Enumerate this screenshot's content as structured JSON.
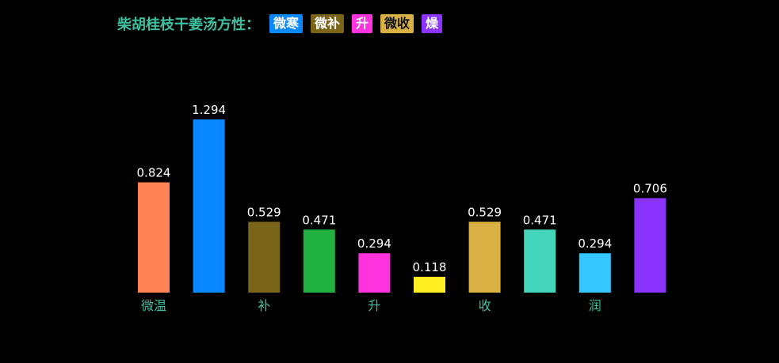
{
  "header": {
    "title": "柴胡桂枝干姜汤方性：",
    "tags": [
      {
        "label": "微寒",
        "color": "#0a88ff",
        "text_color": "#ffffff"
      },
      {
        "label": "微补",
        "color": "#7a6418",
        "text_color": "#ffffff"
      },
      {
        "label": "升",
        "color": "#ff33dd",
        "text_color": "#ffffff"
      },
      {
        "label": "微收",
        "color": "#d8b044",
        "text_color": "#111111"
      },
      {
        "label": "燥",
        "color": "#8a33ff",
        "text_color": "#ffffff"
      }
    ]
  },
  "chart_data": {
    "type": "bar",
    "categories": [
      "微温",
      "",
      "补",
      "",
      "升",
      "",
      "收",
      "",
      "润",
      ""
    ],
    "values": [
      0.824,
      1.294,
      0.529,
      0.471,
      0.294,
      0.118,
      0.529,
      0.471,
      0.294,
      0.706
    ],
    "value_labels": [
      "0.824",
      "1.294",
      "0.529",
      "0.471",
      "0.294",
      "0.118",
      "0.529",
      "0.471",
      "0.294",
      "0.706"
    ],
    "colors": [
      "#ff8255",
      "#0a88ff",
      "#7a6418",
      "#20b040",
      "#ff33dd",
      "#ffee22",
      "#d8b044",
      "#44d6bb",
      "#33c6ff",
      "#8a33ff"
    ],
    "ylim": [
      0,
      1.294
    ],
    "label_color": "#3cc0a0",
    "value_label_color": "#ffffff",
    "grid": false,
    "legend": "none"
  }
}
